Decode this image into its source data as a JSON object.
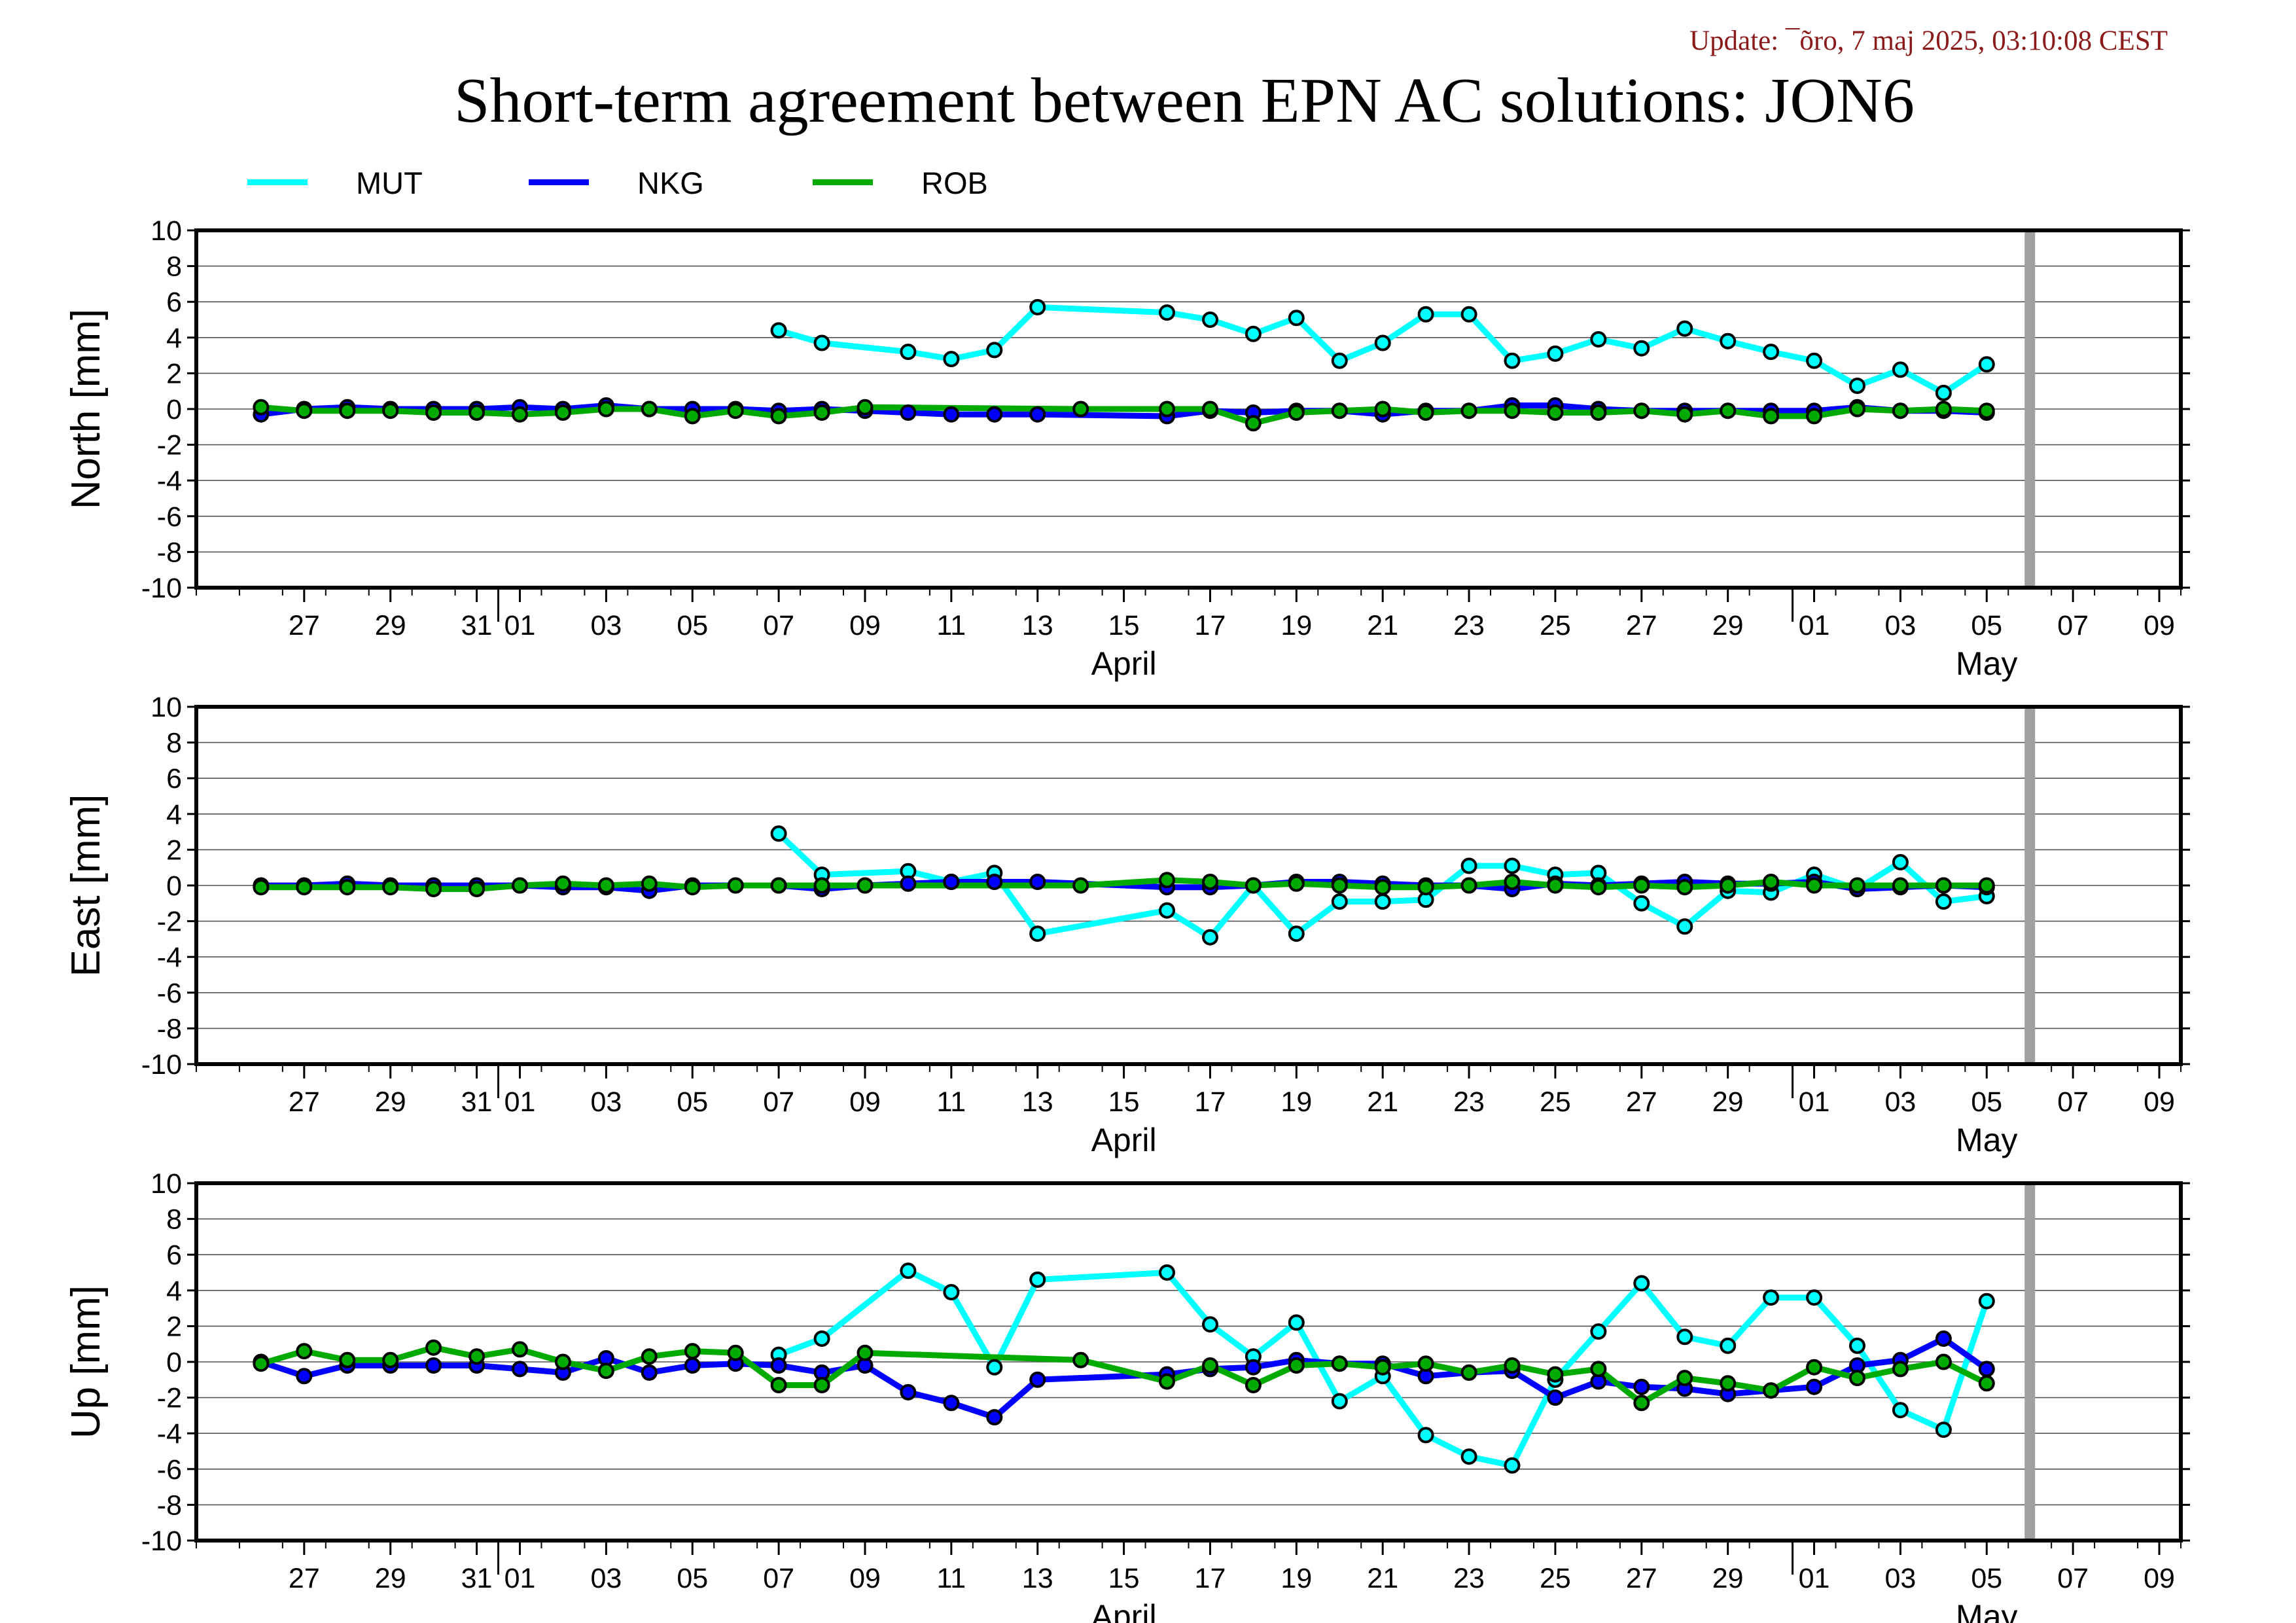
{
  "update_text": "Update: ¯õro, 7 maj 2025, 03:10:08 CEST",
  "chart_data": {
    "type": "line",
    "title": "Short-term agreement between EPN AC solutions: JON6",
    "legend": {
      "placement": "top-left",
      "entries": [
        {
          "name": "MUT",
          "color": "#00ffff"
        },
        {
          "name": "NKG",
          "color": "#0000ff"
        },
        {
          "name": "ROB",
          "color": "#00aa00"
        }
      ]
    },
    "x_axis": {
      "range": [
        "2025-03-25",
        "2025-05-10"
      ],
      "tick_labels": [
        "27",
        "29",
        "31",
        "01",
        "03",
        "05",
        "07",
        "09",
        "11",
        "13",
        "15",
        "17",
        "19",
        "21",
        "23",
        "25",
        "27",
        "29",
        "01",
        "03",
        "05",
        "07",
        "09"
      ],
      "month_labels": [
        "April",
        "May"
      ],
      "current_day_marker": "2025-05-06"
    },
    "x": [
      "2025-03-26",
      "2025-03-27",
      "2025-03-28",
      "2025-03-29",
      "2025-03-30",
      "2025-03-31",
      "2025-04-01",
      "2025-04-02",
      "2025-04-03",
      "2025-04-04",
      "2025-04-05",
      "2025-04-06",
      "2025-04-07",
      "2025-04-08",
      "2025-04-09",
      "2025-04-10",
      "2025-04-11",
      "2025-04-12",
      "2025-04-13",
      "2025-04-14",
      "2025-04-15",
      "2025-04-16",
      "2025-04-17",
      "2025-04-18",
      "2025-04-19",
      "2025-04-20",
      "2025-04-21",
      "2025-04-22",
      "2025-04-23",
      "2025-04-24",
      "2025-04-25",
      "2025-04-26",
      "2025-04-27",
      "2025-04-28",
      "2025-04-29",
      "2025-04-30",
      "2025-05-01",
      "2025-05-02",
      "2025-05-03",
      "2025-05-04",
      "2025-05-05"
    ],
    "panels": [
      {
        "ylabel": "North [mm]",
        "ylim": [
          -10,
          10
        ],
        "yticks": [
          "10",
          "8",
          "6",
          "4",
          "2",
          "0",
          "-2",
          "-4",
          "-6",
          "-8",
          "-10"
        ],
        "series": [
          {
            "name": "MUT",
            "values": [
              null,
              null,
              null,
              null,
              null,
              null,
              null,
              null,
              null,
              null,
              null,
              null,
              4.4,
              3.7,
              null,
              3.2,
              2.8,
              3.3,
              5.7,
              null,
              null,
              5.4,
              5.0,
              4.2,
              5.1,
              2.7,
              3.7,
              5.3,
              5.3,
              2.7,
              3.1,
              3.9,
              3.4,
              4.5,
              3.8,
              3.2,
              2.7,
              1.3,
              2.2,
              0.9,
              2.5
            ]
          },
          {
            "name": "NKG",
            "values": [
              -0.3,
              0.0,
              0.1,
              0.0,
              0.0,
              0.0,
              0.1,
              0.0,
              0.2,
              0.0,
              0.0,
              0.0,
              -0.1,
              0.0,
              -0.1,
              -0.2,
              -0.3,
              -0.3,
              -0.3,
              null,
              null,
              -0.4,
              -0.1,
              -0.2,
              -0.1,
              -0.1,
              -0.3,
              -0.1,
              -0.1,
              0.2,
              0.2,
              0.0,
              -0.1,
              -0.1,
              -0.1,
              -0.1,
              -0.1,
              0.1,
              -0.1,
              -0.1,
              -0.2
            ]
          },
          {
            "name": "ROB",
            "values": [
              0.1,
              -0.1,
              -0.1,
              -0.1,
              -0.2,
              -0.2,
              -0.3,
              -0.2,
              0.0,
              0.0,
              -0.4,
              -0.1,
              -0.4,
              -0.2,
              0.1,
              null,
              null,
              null,
              null,
              0.0,
              null,
              0.0,
              0.0,
              -0.8,
              -0.2,
              -0.1,
              0.0,
              -0.2,
              -0.1,
              -0.1,
              -0.2,
              -0.2,
              -0.1,
              -0.3,
              -0.1,
              -0.4,
              -0.4,
              0.0,
              -0.1,
              0.0,
              -0.1
            ]
          }
        ]
      },
      {
        "ylabel": "East [mm]",
        "ylim": [
          -10,
          10
        ],
        "yticks": [
          "10",
          "8",
          "6",
          "4",
          "2",
          "0",
          "-2",
          "-4",
          "-6",
          "-8",
          "-10"
        ],
        "series": [
          {
            "name": "MUT",
            "values": [
              null,
              null,
              null,
              null,
              null,
              null,
              null,
              null,
              null,
              null,
              null,
              null,
              2.9,
              0.6,
              null,
              0.8,
              0.2,
              0.7,
              -2.7,
              null,
              null,
              -1.4,
              -2.9,
              0.0,
              -2.7,
              -0.9,
              -0.9,
              -0.8,
              1.1,
              1.1,
              0.6,
              0.7,
              -1.0,
              -2.3,
              -0.3,
              -0.4,
              0.6,
              -0.2,
              1.3,
              -0.9,
              -0.6
            ]
          },
          {
            "name": "NKG",
            "values": [
              0.0,
              0.0,
              0.1,
              0.0,
              0.0,
              0.0,
              0.0,
              -0.1,
              -0.1,
              -0.3,
              0.0,
              0.0,
              0.0,
              -0.2,
              0.0,
              0.1,
              0.2,
              0.2,
              0.2,
              null,
              null,
              -0.1,
              -0.1,
              0.0,
              0.2,
              0.2,
              0.1,
              0.0,
              0.0,
              -0.2,
              0.1,
              0.0,
              0.1,
              0.2,
              0.1,
              0.1,
              0.2,
              -0.2,
              -0.1,
              0.0,
              -0.1
            ]
          },
          {
            "name": "ROB",
            "values": [
              -0.1,
              -0.1,
              -0.1,
              -0.1,
              -0.2,
              -0.2,
              0.0,
              0.1,
              0.0,
              0.1,
              -0.1,
              0.0,
              0.0,
              0.0,
              0.0,
              null,
              null,
              null,
              null,
              0.0,
              null,
              0.3,
              0.2,
              0.0,
              0.1,
              0.0,
              -0.1,
              -0.1,
              0.0,
              0.2,
              0.0,
              -0.1,
              0.0,
              -0.1,
              0.0,
              0.2,
              0.0,
              0.0,
              0.0,
              0.0,
              0.0
            ]
          }
        ]
      },
      {
        "ylabel": "Up [mm]",
        "ylim": [
          -10,
          10
        ],
        "yticks": [
          "10",
          "8",
          "6",
          "4",
          "2",
          "0",
          "-2",
          "-4",
          "-6",
          "-8",
          "-10"
        ],
        "series": [
          {
            "name": "MUT",
            "values": [
              null,
              null,
              null,
              null,
              null,
              null,
              null,
              null,
              null,
              null,
              null,
              null,
              0.4,
              1.3,
              null,
              5.1,
              3.9,
              -0.3,
              4.6,
              null,
              null,
              5.0,
              2.1,
              0.3,
              2.2,
              -2.2,
              -0.8,
              -4.1,
              -5.3,
              -5.8,
              -1.0,
              1.7,
              4.4,
              1.4,
              0.9,
              3.6,
              3.6,
              0.9,
              -2.7,
              -3.8,
              3.4
            ]
          },
          {
            "name": "NKG",
            "values": [
              0.0,
              -0.8,
              -0.2,
              -0.2,
              -0.2,
              -0.2,
              -0.4,
              -0.6,
              0.2,
              -0.6,
              -0.2,
              -0.1,
              -0.2,
              -0.6,
              -0.2,
              -1.7,
              -2.3,
              -3.1,
              -1.0,
              null,
              null,
              -0.7,
              -0.4,
              -0.3,
              0.1,
              -0.1,
              -0.1,
              -0.8,
              -0.6,
              -0.5,
              -2.0,
              -1.1,
              -1.4,
              -1.5,
              -1.8,
              -1.6,
              -1.4,
              -0.2,
              0.1,
              1.3,
              -0.4
            ]
          },
          {
            "name": "ROB",
            "values": [
              -0.1,
              0.6,
              0.1,
              0.1,
              0.8,
              0.3,
              0.7,
              0.0,
              -0.5,
              0.3,
              0.6,
              0.5,
              -1.3,
              -1.3,
              0.5,
              null,
              null,
              null,
              null,
              0.1,
              null,
              -1.1,
              -0.2,
              -1.3,
              -0.2,
              -0.1,
              -0.3,
              -0.1,
              -0.6,
              -0.2,
              -0.7,
              -0.4,
              -2.3,
              -0.9,
              -1.2,
              -1.6,
              -0.3,
              -0.9,
              -0.4,
              0.0,
              -1.2
            ]
          }
        ]
      }
    ]
  }
}
